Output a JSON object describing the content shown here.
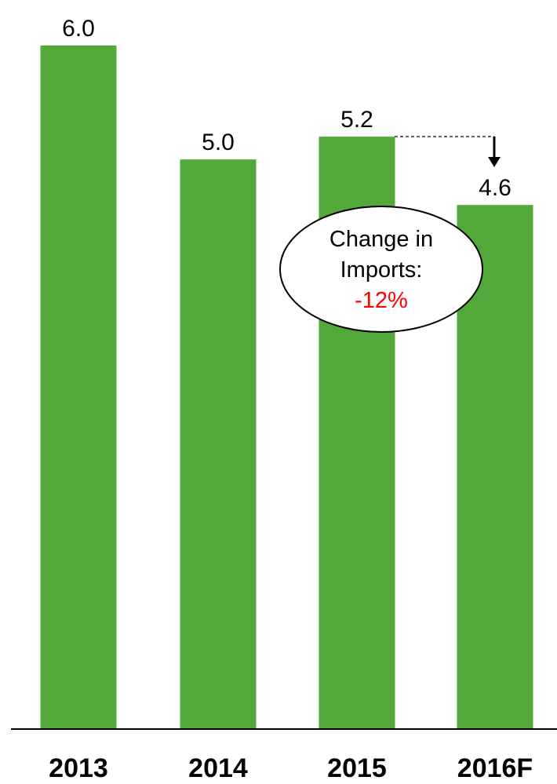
{
  "chart_data": {
    "type": "bar",
    "categories": [
      "2013",
      "2014",
      "2015",
      "2016F"
    ],
    "values": [
      6.0,
      5.0,
      5.2,
      4.6
    ],
    "value_labels": [
      "6.0",
      "5.0",
      "5.2",
      "4.6"
    ],
    "title": "",
    "xlabel": "",
    "ylabel": "",
    "ylim": [
      0,
      6.0
    ],
    "grid": false,
    "legend": "none",
    "bar_color": "#52A838",
    "annotation": {
      "line1": "Change in",
      "line2": "Imports:",
      "change": "-12%",
      "change_color": "#FF0000"
    }
  }
}
